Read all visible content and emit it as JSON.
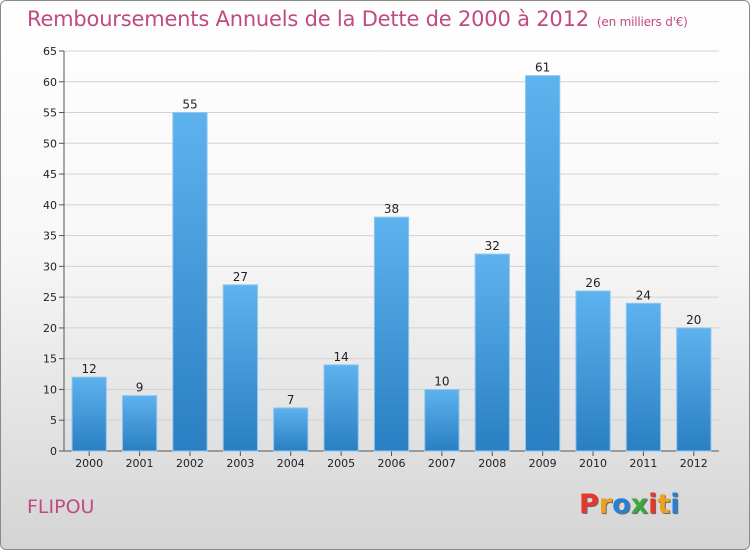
{
  "header": {
    "title": "Remboursements Annuels de la Dette de 2000 à 2012",
    "unit": "(en milliers d'€)"
  },
  "footer": {
    "commune": "FLIPOU",
    "logo": "Proxiti",
    "logo_colors": [
      "#e8372a",
      "#f0a020",
      "#2a7fd0",
      "#3aa83a",
      "#e8372a",
      "#f0a020",
      "#2a7fd0"
    ]
  },
  "chart_data": {
    "type": "bar",
    "title": "Remboursements Annuels de la Dette de 2000 à 2012",
    "subtitle": "(en milliers d'€)",
    "categories": [
      "2000",
      "2001",
      "2002",
      "2003",
      "2004",
      "2005",
      "2006",
      "2007",
      "2008",
      "2009",
      "2010",
      "2011",
      "2012"
    ],
    "values": [
      12,
      9,
      55,
      27,
      7,
      14,
      38,
      10,
      32,
      61,
      26,
      24,
      20
    ],
    "ylim": [
      0,
      65
    ],
    "yticks": [
      0,
      5,
      10,
      15,
      20,
      25,
      30,
      35,
      40,
      45,
      50,
      55,
      60,
      65
    ],
    "grid": true,
    "bar_color_top": "#5eb2ee",
    "bar_color_bottom": "#2a7fc2"
  }
}
